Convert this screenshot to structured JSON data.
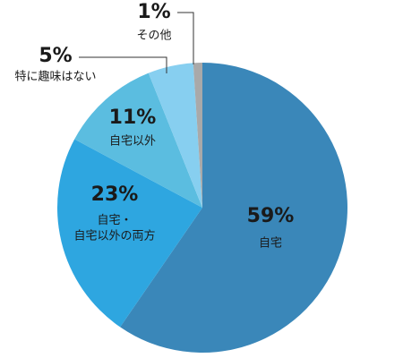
{
  "chart_data": {
    "type": "pie",
    "categories": [
      "自宅",
      "自宅・\n自宅以外の両方",
      "自宅以外",
      "特に趣味はない",
      "その他"
    ],
    "values": [
      59,
      23,
      11,
      5,
      1
    ],
    "value_labels": [
      "59%",
      "23%",
      "11%",
      "5%",
      "1%"
    ],
    "colors": [
      "#3a87b9",
      "#2ea6e0",
      "#5bbde0",
      "#87cff0",
      "#a9a9a9"
    ]
  }
}
